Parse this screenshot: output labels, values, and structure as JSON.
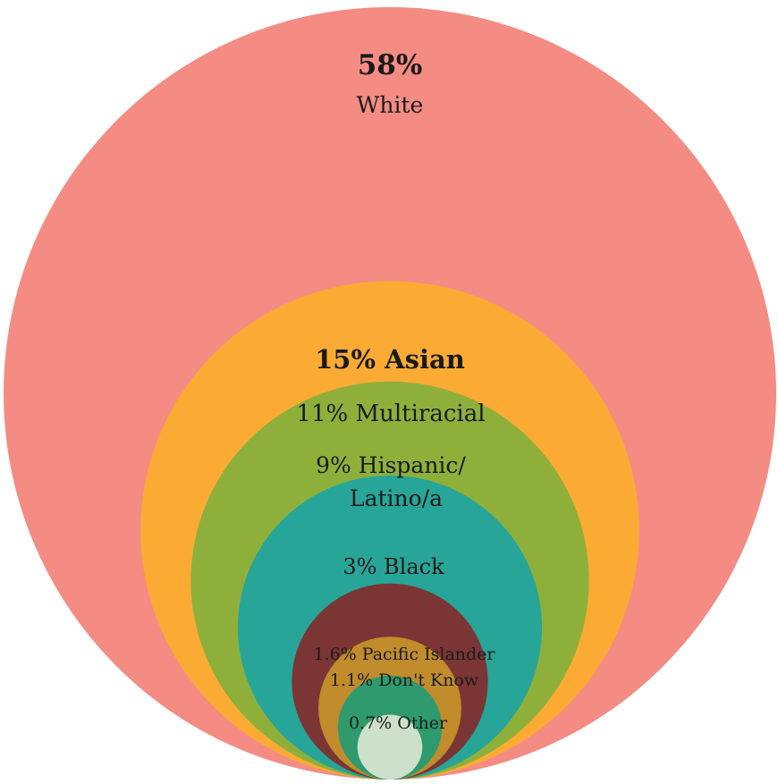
{
  "chart_data": {
    "type": "nested-circles",
    "title": "",
    "series": [
      {
        "name": "White",
        "value": 58,
        "value_label": "58%",
        "label": "White",
        "color": "#f48c83"
      },
      {
        "name": "Asian",
        "value": 15,
        "value_label": "15%",
        "label": "Asian",
        "color": "#fbab33"
      },
      {
        "name": "Multiracial",
        "value": 11,
        "value_label": "11%",
        "label": "Multiracial",
        "color": "#8eb03b"
      },
      {
        "name": "Hispanic/Latino/a",
        "value": 9,
        "value_label": "9%",
        "label": "Hispanic/",
        "label_line2": "Latino/a",
        "color": "#27a598"
      },
      {
        "name": "Black",
        "value": 3,
        "value_label": "3%",
        "label": "Black",
        "color": "#7b3535"
      },
      {
        "name": "Pacific Islander",
        "value": 1.6,
        "value_label": "1.6%",
        "label": "Pacific Islander",
        "color": "#c08c2c"
      },
      {
        "name": "Don't Know",
        "value": 1.1,
        "value_label": "1.1%",
        "label": "Don't Know",
        "color": "#2e9a6e"
      },
      {
        "name": "Other",
        "value": 0.7,
        "value_label": "0.7%",
        "label": "Other",
        "color": "#cde0cb"
      }
    ]
  }
}
